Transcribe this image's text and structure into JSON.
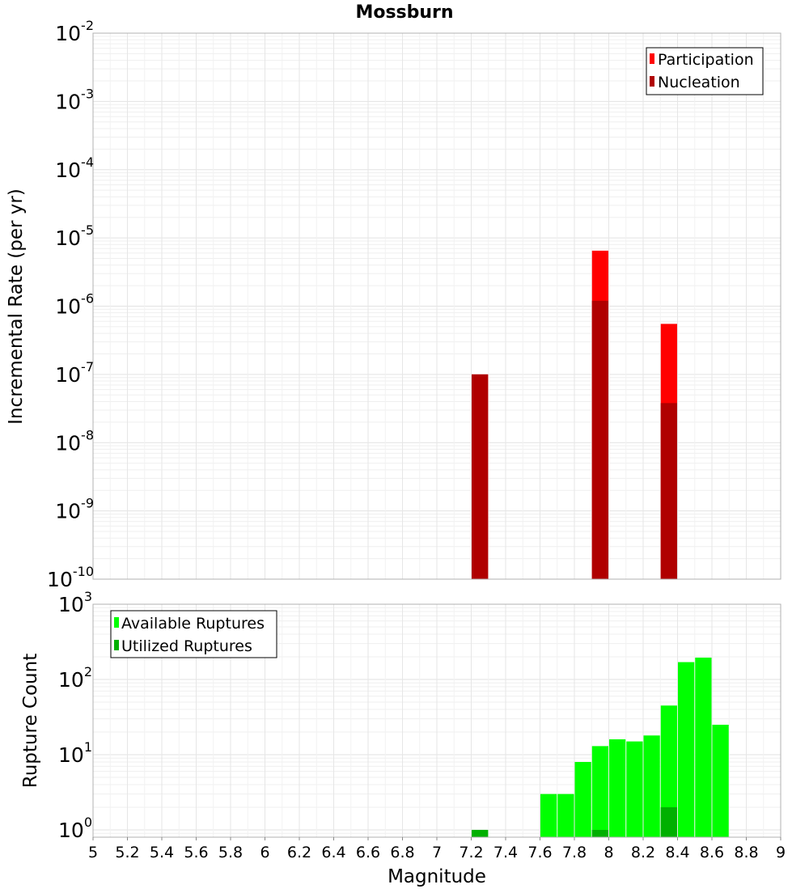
{
  "chart_data": [
    {
      "type": "bar",
      "title": "Mossburn",
      "xlabel": "",
      "ylabel": "Incremental Rate (per yr)",
      "yscale": "log",
      "xlim": [
        5,
        9
      ],
      "ylim": [
        1e-10,
        0.01
      ],
      "ytick_labels": [
        {
          "base": "10",
          "exp": "-10"
        },
        {
          "base": "10",
          "exp": "-9"
        },
        {
          "base": "10",
          "exp": "-8"
        },
        {
          "base": "10",
          "exp": "-7"
        },
        {
          "base": "10",
          "exp": "-6"
        },
        {
          "base": "10",
          "exp": "-5"
        },
        {
          "base": "10",
          "exp": "-4"
        },
        {
          "base": "10",
          "exp": "-3"
        },
        {
          "base": "10",
          "exp": "-2"
        }
      ],
      "legend": {
        "position": "top-right",
        "entries": [
          "Participation",
          "Nucleation"
        ]
      },
      "bar_width": 0.1,
      "series": [
        {
          "name": "Participation",
          "color": "#ff0000",
          "x": [
            7.25,
            7.95,
            8.35
          ],
          "values": [
            1e-07,
            6.5e-06,
            5.5e-07
          ]
        },
        {
          "name": "Nucleation",
          "color": "#b00000",
          "x": [
            7.25,
            7.95,
            8.35
          ],
          "values": [
            1e-07,
            1.2e-06,
            3.8e-08
          ]
        }
      ]
    },
    {
      "type": "bar",
      "xlabel": "Magnitude",
      "ylabel": "Rupture Count",
      "yscale": "log",
      "xlim": [
        5,
        9
      ],
      "ylim": [
        0.8,
        1000
      ],
      "xticks": [
        "5",
        "5.2",
        "5.4",
        "5.6",
        "5.8",
        "6",
        "6.2",
        "6.4",
        "6.6",
        "6.8",
        "7",
        "7.2",
        "7.4",
        "7.6",
        "7.8",
        "8",
        "8.2",
        "8.4",
        "8.6",
        "8.8",
        "9"
      ],
      "ytick_labels": [
        {
          "base": "10",
          "exp": "0"
        },
        {
          "base": "10",
          "exp": "1"
        },
        {
          "base": "10",
          "exp": "2"
        },
        {
          "base": "10",
          "exp": "3"
        }
      ],
      "legend": {
        "position": "top-left",
        "entries": [
          "Available Ruptures",
          "Utilized Ruptures"
        ]
      },
      "bar_width": 0.1,
      "series": [
        {
          "name": "Available Ruptures",
          "color": "#00ff00",
          "x": [
            7.25,
            7.65,
            7.75,
            7.85,
            7.95,
            8.05,
            8.15,
            8.25,
            8.35,
            8.45,
            8.55,
            8.65
          ],
          "values": [
            1,
            3,
            3,
            8,
            13,
            16,
            15,
            18,
            45,
            170,
            195,
            25
          ]
        },
        {
          "name": "Utilized Ruptures",
          "color": "#00b000",
          "x": [
            7.25,
            7.95,
            8.35
          ],
          "values": [
            1,
            1,
            2
          ]
        }
      ]
    }
  ]
}
